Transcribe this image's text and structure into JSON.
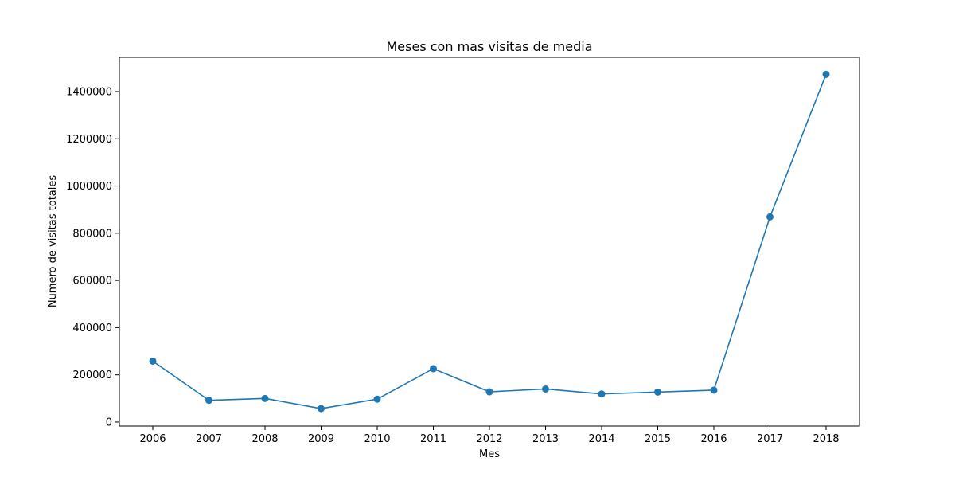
{
  "chart_data": {
    "type": "line",
    "title": "Meses con mas visitas de media",
    "xlabel": "Mes",
    "ylabel": "Numero de visitas totales",
    "categories": [
      "2006",
      "2007",
      "2008",
      "2009",
      "2010",
      "2011",
      "2012",
      "2013",
      "2014",
      "2015",
      "2016",
      "2017",
      "2018"
    ],
    "series": [
      {
        "values": [
          258000,
          92000,
          100000,
          57000,
          97000,
          226000,
          128000,
          140000,
          119000,
          127000,
          135000,
          869000,
          1473000
        ]
      }
    ],
    "yticks": [
      0,
      200000,
      400000,
      600000,
      800000,
      1000000,
      1200000,
      1400000
    ],
    "ytick_labels": [
      "0",
      "200000",
      "400000",
      "600000",
      "800000",
      "1000000",
      "1200000",
      "1400000"
    ],
    "ylim": [
      -17000,
      1545000
    ],
    "markers": "circle",
    "grid": false,
    "legend": false,
    "color": "#1f77b4"
  }
}
